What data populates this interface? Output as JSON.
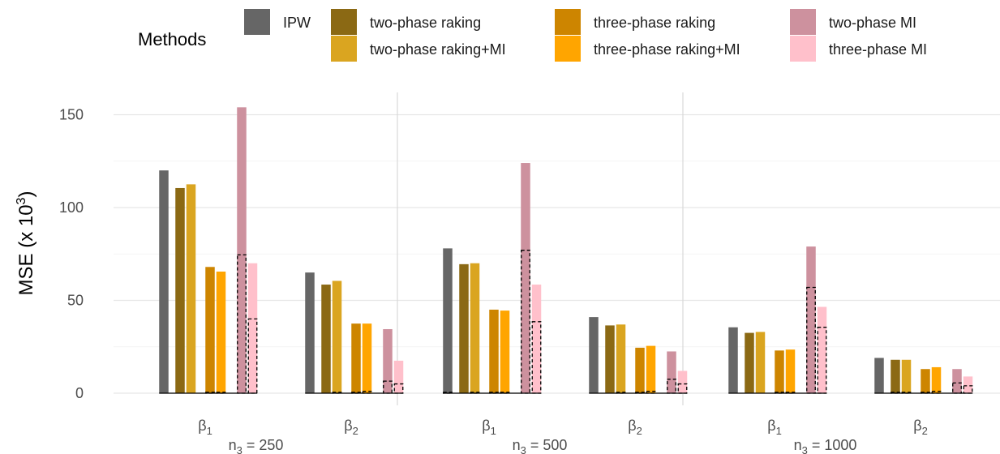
{
  "chart_data": {
    "type": "bar",
    "legend": {
      "title": "Methods",
      "placement": "top",
      "entries": [
        {
          "key": "ipw",
          "label": "IPW",
          "color": "#666666"
        },
        {
          "key": "tpr",
          "label": "two-phase raking",
          "color": "#8B6914"
        },
        {
          "key": "tpr_mi",
          "label": "two-phase raking+MI",
          "color": "#DAA520"
        },
        {
          "key": "thr",
          "label": "three-phase raking",
          "color": "#CD8500"
        },
        {
          "key": "thr_mi",
          "label": "three-phase raking+MI",
          "color": "#FFA500"
        },
        {
          "key": "tp_mi",
          "label": "two-phase MI",
          "color": "#CD919E"
        },
        {
          "key": "th_mi",
          "label": "three-phase MI",
          "color": "#FFC0CB"
        }
      ]
    },
    "ylabel": "MSE (x 10",
    "ylabel_sup": "3",
    "ylabel_close": ")",
    "ylim": [
      0,
      160
    ],
    "yticks": [
      0,
      50,
      100,
      150
    ],
    "grid": true,
    "panels": [
      {
        "label_main": "n",
        "label_sub": "3",
        "label_rest": " = 250",
        "groups": [
          {
            "label_main": "β",
            "label_sub": "1",
            "values": {
              "ipw": 120,
              "tpr": 110.5,
              "tpr_mi": 112.5,
              "thr": 68,
              "thr_mi": 65.5,
              "tp_mi": 154,
              "th_mi": 70
            },
            "dashed": {
              "ipw": 0,
              "tpr": 0,
              "tpr_mi": 0,
              "thr": 0.5,
              "thr_mi": 0.5,
              "tp_mi": 74.5,
              "th_mi": 40
            }
          },
          {
            "label_main": "β",
            "label_sub": "2",
            "values": {
              "ipw": 65,
              "tpr": 58.5,
              "tpr_mi": 60.5,
              "thr": 37.5,
              "thr_mi": 37.5,
              "tp_mi": 34.5,
              "th_mi": 17.5
            },
            "dashed": {
              "ipw": 0,
              "tpr": 0,
              "tpr_mi": 0.5,
              "thr": 0.5,
              "thr_mi": 1,
              "tp_mi": 6.5,
              "th_mi": 5
            }
          }
        ]
      },
      {
        "label_main": "n",
        "label_sub": "3",
        "label_rest": " = 500",
        "groups": [
          {
            "label_main": "β",
            "label_sub": "1",
            "values": {
              "ipw": 78,
              "tpr": 69.5,
              "tpr_mi": 70,
              "thr": 45,
              "thr_mi": 44.5,
              "tp_mi": 124,
              "th_mi": 58.5
            },
            "dashed": {
              "ipw": 0.5,
              "tpr": 0,
              "tpr_mi": 0.5,
              "thr": 0.5,
              "thr_mi": 0.5,
              "tp_mi": 77,
              "th_mi": 38.5
            }
          },
          {
            "label_main": "β",
            "label_sub": "2",
            "values": {
              "ipw": 41,
              "tpr": 36.5,
              "tpr_mi": 37,
              "thr": 24.5,
              "thr_mi": 25.5,
              "tp_mi": 22.5,
              "th_mi": 12
            },
            "dashed": {
              "ipw": 0,
              "tpr": 0,
              "tpr_mi": 0.5,
              "thr": 0.5,
              "thr_mi": 1,
              "tp_mi": 7.5,
              "th_mi": 5
            }
          }
        ]
      },
      {
        "label_main": "n",
        "label_sub": "3",
        "label_rest": " = 1000",
        "groups": [
          {
            "label_main": "β",
            "label_sub": "1",
            "values": {
              "ipw": 35.5,
              "tpr": 32.5,
              "tpr_mi": 33,
              "thr": 23,
              "thr_mi": 23.5,
              "tp_mi": 79,
              "th_mi": 46.5
            },
            "dashed": {
              "ipw": 0,
              "tpr": 0,
              "tpr_mi": 0,
              "thr": 0.5,
              "thr_mi": 0.5,
              "tp_mi": 57,
              "th_mi": 35.5
            }
          },
          {
            "label_main": "β",
            "label_sub": "2",
            "values": {
              "ipw": 19,
              "tpr": 18,
              "tpr_mi": 18,
              "thr": 13,
              "thr_mi": 14,
              "tp_mi": 13,
              "th_mi": 9
            },
            "dashed": {
              "ipw": 0,
              "tpr": 0.5,
              "tpr_mi": 0.5,
              "thr": 0.5,
              "thr_mi": 1,
              "tp_mi": 5.5,
              "th_mi": 4
            }
          }
        ]
      }
    ]
  }
}
